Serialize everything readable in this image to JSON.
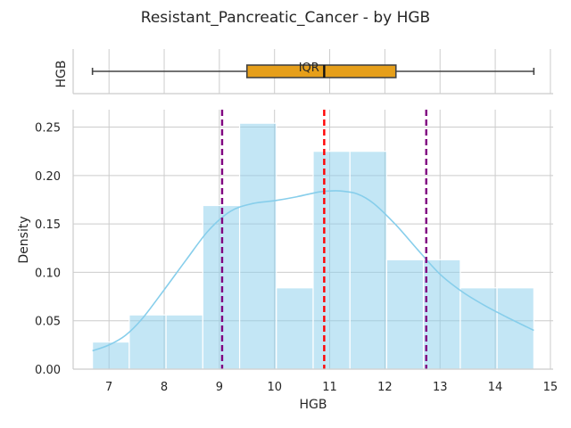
{
  "chart_data": {
    "title": "Resistant_Pancreatic_Cancer - by HGB",
    "boxplot": {
      "type": "box",
      "ylabel": "HGB",
      "min": 6.7,
      "q1": 9.5,
      "median": 10.9,
      "q3": 12.2,
      "max": 14.7,
      "annotation": "IQR",
      "color": "#e69f1a"
    },
    "histogram": {
      "type": "bar",
      "xlabel": "HGB",
      "ylabel": "Density",
      "xlim": [
        6.35,
        15.05
      ],
      "ylim": [
        0,
        0.268
      ],
      "xticks": [
        7,
        8,
        9,
        10,
        11,
        12,
        13,
        14,
        15
      ],
      "yticks": [
        0.0,
        0.05,
        0.1,
        0.15,
        0.2,
        0.25
      ],
      "ytick_labels": [
        "0.00",
        "0.05",
        "0.10",
        "0.15",
        "0.20",
        "0.25"
      ],
      "grid": true,
      "bar_color": "#87ceeb",
      "bins": [
        {
          "x0": 6.7,
          "x1": 7.367,
          "density": 0.028
        },
        {
          "x0": 7.367,
          "x1": 8.033,
          "density": 0.056
        },
        {
          "x0": 8.033,
          "x1": 8.7,
          "density": 0.056
        },
        {
          "x0": 8.7,
          "x1": 9.367,
          "density": 0.169
        },
        {
          "x0": 9.367,
          "x1": 10.033,
          "density": 0.254
        },
        {
          "x0": 10.033,
          "x1": 10.7,
          "density": 0.084
        },
        {
          "x0": 10.7,
          "x1": 11.367,
          "density": 0.225
        },
        {
          "x0": 11.367,
          "x1": 12.033,
          "density": 0.225
        },
        {
          "x0": 12.033,
          "x1": 12.7,
          "density": 0.113
        },
        {
          "x0": 12.7,
          "x1": 13.367,
          "density": 0.113
        },
        {
          "x0": 13.367,
          "x1": 14.033,
          "density": 0.084
        },
        {
          "x0": 14.033,
          "x1": 14.7,
          "density": 0.084
        }
      ],
      "kde": {
        "color": "#87ceeb",
        "x": [
          6.7,
          7.0,
          7.3,
          7.6,
          8.0,
          8.4,
          8.8,
          9.2,
          9.6,
          10.0,
          10.4,
          10.8,
          11.0,
          11.2,
          11.5,
          11.8,
          12.2,
          12.6,
          13.0,
          13.4,
          13.8,
          14.2,
          14.7
        ],
        "y": [
          0.019,
          0.025,
          0.035,
          0.052,
          0.082,
          0.113,
          0.143,
          0.163,
          0.171,
          0.174,
          0.178,
          0.183,
          0.184,
          0.184,
          0.181,
          0.171,
          0.149,
          0.123,
          0.098,
          0.08,
          0.066,
          0.054,
          0.04
        ]
      },
      "vlines": [
        {
          "name": "lower",
          "x": 9.05,
          "color": "#800080"
        },
        {
          "name": "median",
          "x": 10.9,
          "color": "#ff0000"
        },
        {
          "name": "upper",
          "x": 12.75,
          "color": "#800080"
        }
      ]
    }
  }
}
